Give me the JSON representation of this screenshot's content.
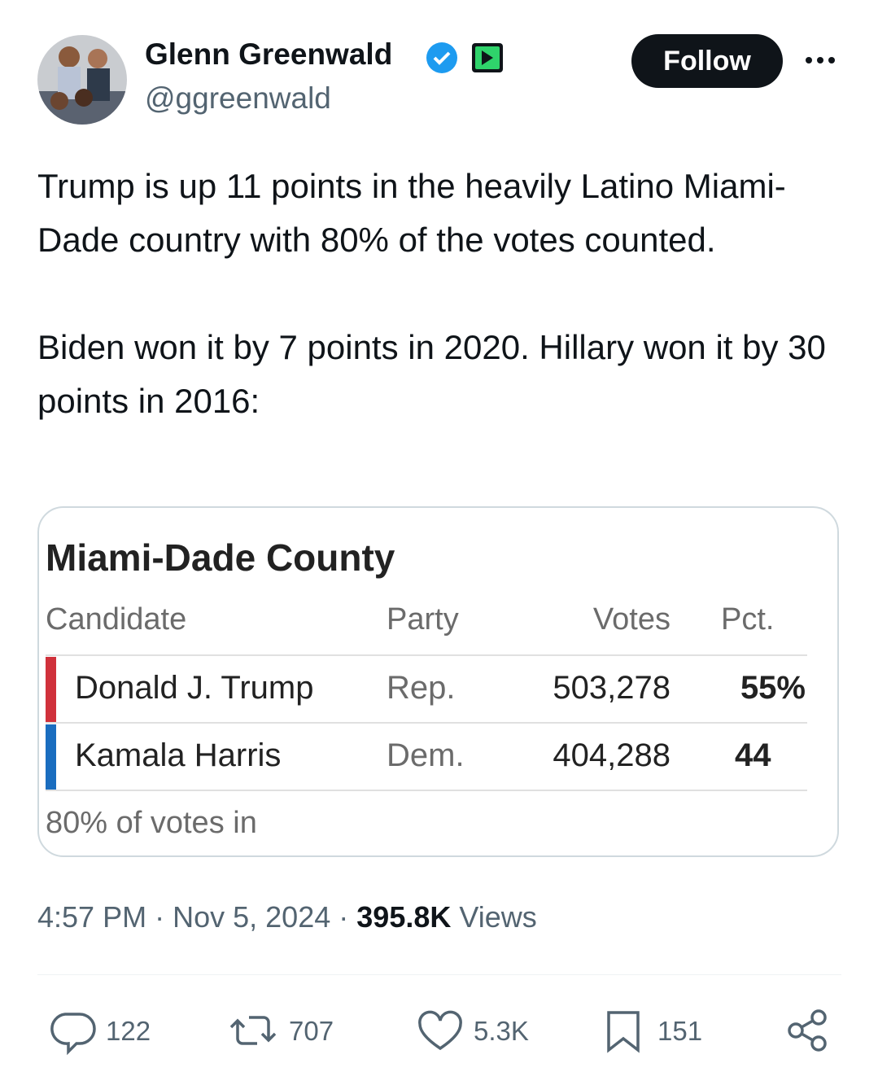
{
  "author": {
    "name": "Glenn Greenwald",
    "handle": "@ggreenwald"
  },
  "follow_button": "Follow",
  "body": [
    "Trump is up 11 points in the heavily Latino Miami-Dade country with 80% of the votes counted.",
    "Biden won it by 7 points in 2020. Hillary won it by 30 points in 2016:"
  ],
  "card": {
    "title": "Miami-Dade County",
    "header": [
      "Candidate",
      "Party",
      "Votes",
      "Pct."
    ],
    "rows": [
      [
        "Donald J. Trump",
        "Rep.",
        "503,278",
        "55%"
      ],
      [
        "Kamala Harris",
        "Dem.",
        "404,288",
        "44"
      ]
    ],
    "footnote": "80% of votes in"
  },
  "meta": {
    "time": "4:57 PM",
    "separator": "·",
    "date": "Nov 5, 2024",
    "views": "395.8K",
    "views_label": "Views"
  },
  "actions": {
    "replies": "122",
    "reposts": "707",
    "likes": "5.3K",
    "bookmarks": "151"
  }
}
